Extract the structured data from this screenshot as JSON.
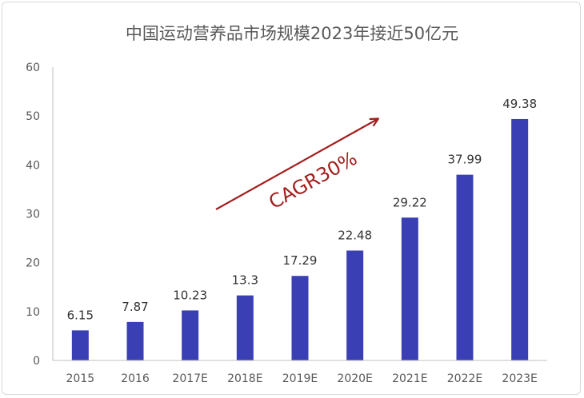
{
  "chart_data": {
    "type": "bar",
    "title": "中国运动营养品市场规模2023年接近50亿元",
    "categories": [
      "2015",
      "2016",
      "2017E",
      "2018E",
      "2019E",
      "2020E",
      "2021E",
      "2022E",
      "2023E"
    ],
    "values": [
      6.15,
      7.87,
      10.23,
      13.3,
      17.29,
      22.48,
      29.22,
      37.99,
      49.38
    ],
    "value_labels": [
      "6.15",
      "7.87",
      "10.23",
      "13.3",
      "17.29",
      "22.48",
      "29.22",
      "37.99",
      "49.38"
    ],
    "ylim": [
      0,
      60
    ],
    "yticks": [
      "0",
      "10",
      "20",
      "30",
      "40",
      "50",
      "60"
    ],
    "grid": false,
    "annotation": "CAGR30%",
    "colors": {
      "bar": "#3a3fb3",
      "arrow": "#a31d1d",
      "axis": "#bfbfbf",
      "text": "#595959"
    }
  }
}
